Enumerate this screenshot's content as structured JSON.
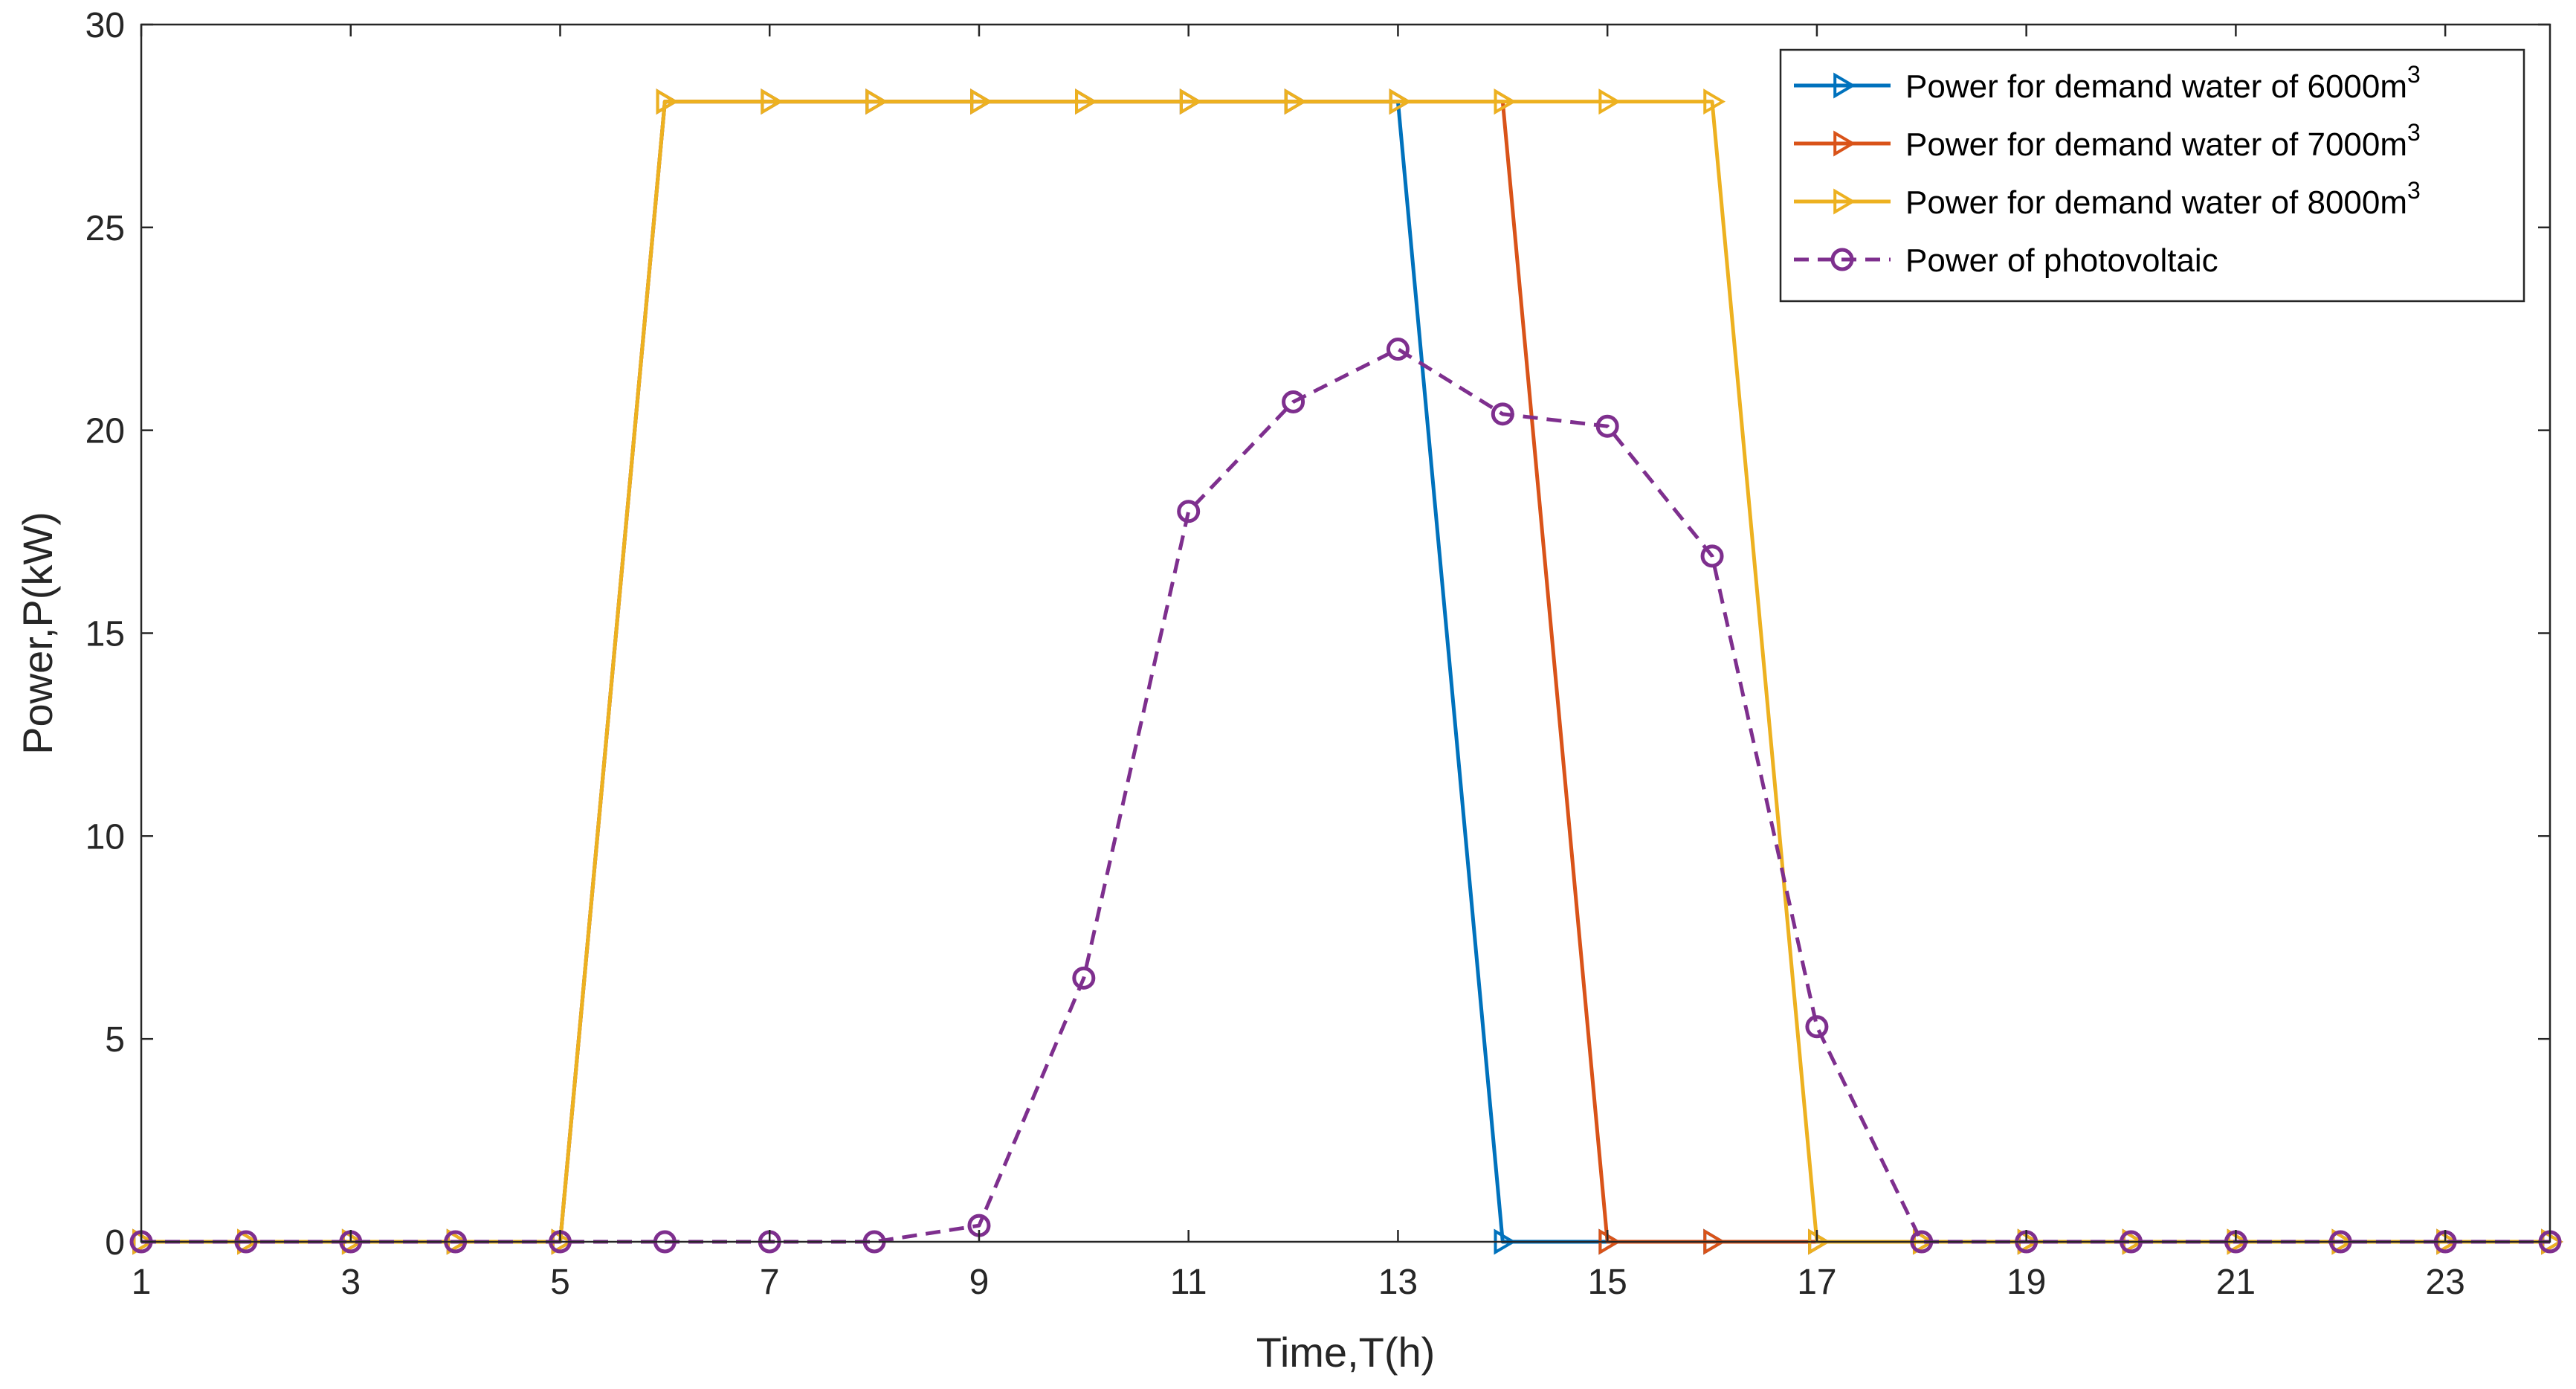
{
  "chart_data": {
    "type": "line",
    "title": "",
    "xlabel": "Time,T(h)",
    "ylabel": "Power,P(kW)",
    "xlim": [
      1,
      24
    ],
    "ylim": [
      0,
      30
    ],
    "xticks": [
      1,
      3,
      5,
      7,
      9,
      11,
      13,
      15,
      17,
      19,
      21,
      23
    ],
    "yticks": [
      0,
      5,
      10,
      15,
      20,
      25,
      30
    ],
    "grid": false,
    "legend_position": "top-right",
    "x": [
      1,
      2,
      3,
      4,
      5,
      6,
      7,
      8,
      9,
      10,
      11,
      12,
      13,
      14,
      15,
      16,
      17,
      18,
      19,
      20,
      21,
      22,
      23,
      24
    ],
    "series": [
      {
        "name": "Power for demand water of 6000m",
        "name_sup": "3",
        "color": "#0072BD",
        "marker": "triangle-right",
        "line_style": "solid",
        "values": [
          0,
          0,
          0,
          0,
          0,
          28.1,
          28.1,
          28.1,
          28.1,
          28.1,
          28.1,
          28.1,
          28.1,
          0,
          0,
          0,
          0,
          0,
          0,
          0,
          0,
          0,
          0,
          0
        ]
      },
      {
        "name": "Power for demand water of 7000m",
        "name_sup": "3",
        "color": "#D95319",
        "marker": "triangle-right",
        "line_style": "solid",
        "values": [
          0,
          0,
          0,
          0,
          0,
          28.1,
          28.1,
          28.1,
          28.1,
          28.1,
          28.1,
          28.1,
          28.1,
          28.1,
          0,
          0,
          0,
          0,
          0,
          0,
          0,
          0,
          0,
          0
        ]
      },
      {
        "name": "Power for demand water of 8000m",
        "name_sup": "3",
        "color": "#EDB120",
        "marker": "triangle-right",
        "line_style": "solid",
        "values": [
          0,
          0,
          0,
          0,
          0,
          28.1,
          28.1,
          28.1,
          28.1,
          28.1,
          28.1,
          28.1,
          28.1,
          28.1,
          28.1,
          28.1,
          0,
          0,
          0,
          0,
          0,
          0,
          0,
          0
        ]
      },
      {
        "name": "Power of photovoltaic",
        "name_sup": "",
        "color": "#7E2F8E",
        "marker": "circle",
        "line_style": "dashed",
        "values": [
          0,
          0,
          0,
          0,
          0,
          0,
          0,
          0,
          0.4,
          6.5,
          18,
          20.7,
          22,
          20.4,
          20.1,
          16.9,
          5.3,
          0,
          0,
          0,
          0,
          0,
          0,
          0
        ]
      }
    ]
  }
}
